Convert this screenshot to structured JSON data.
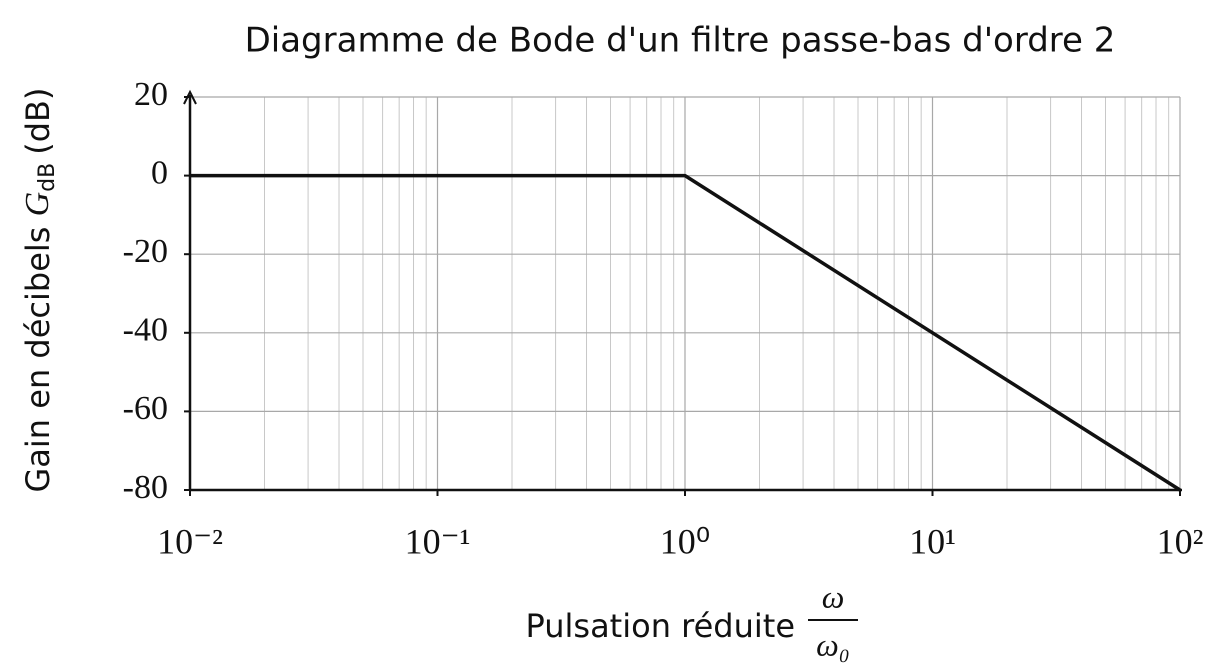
{
  "chart_data": {
    "type": "line",
    "title": "Diagramme de Bode d'un filtre passe-bas d'ordre 2",
    "xlabel": {
      "text": "Pulsation réduite",
      "numerator": "ω",
      "denominator": "ω₀"
    },
    "ylabel": {
      "text": "Gain en décibels",
      "symbol": "G",
      "subscript": "dB",
      "unit": "(dB)"
    },
    "x": [
      0.01,
      1,
      100
    ],
    "values": [
      0,
      0,
      -80
    ],
    "color": "#111111",
    "xscale": "log",
    "xlim": [
      0.01,
      100
    ],
    "xticks": [
      {
        "value": 0.01,
        "label": "10⁻²"
      },
      {
        "value": 0.1,
        "label": "10⁻¹"
      },
      {
        "value": 1,
        "label": "10⁰"
      },
      {
        "value": 10,
        "label": "10¹"
      },
      {
        "value": 100,
        "label": "10²"
      }
    ],
    "ylim": [
      -80,
      20
    ],
    "yticks": [
      20,
      0,
      -20,
      -40,
      -60,
      -80
    ],
    "grid": true
  }
}
